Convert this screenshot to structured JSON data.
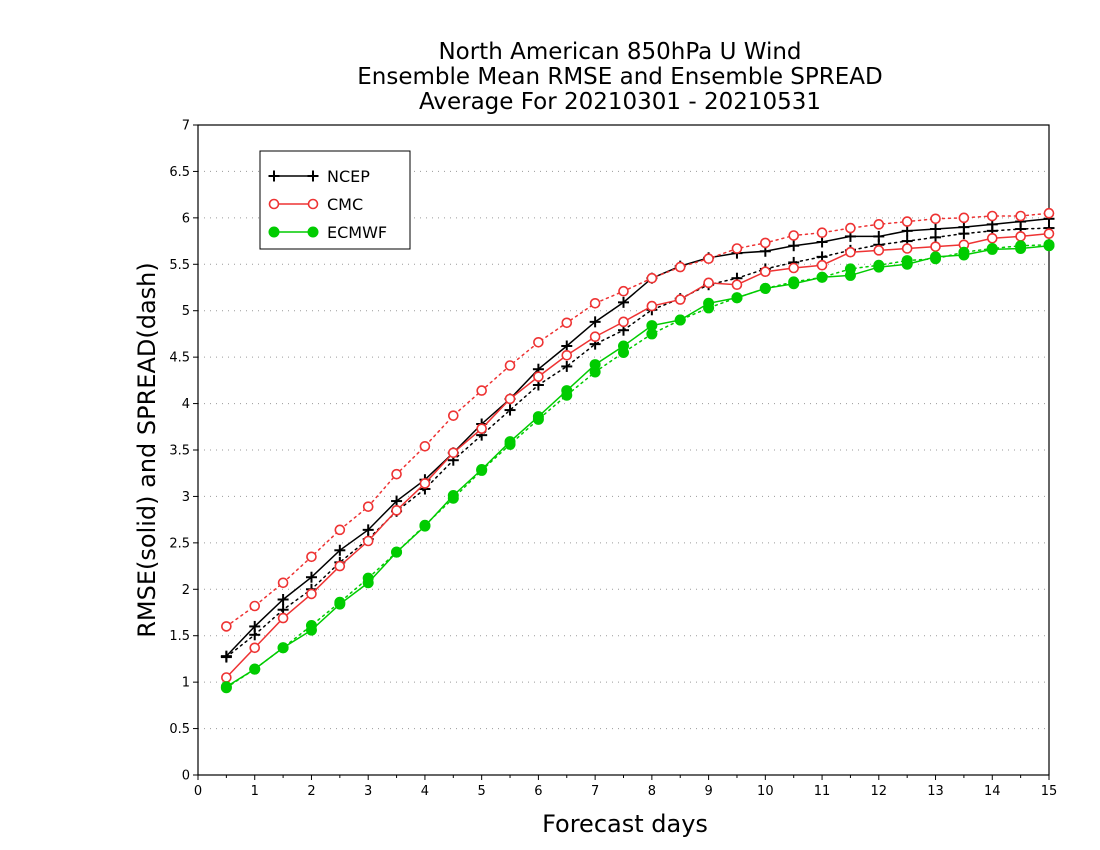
{
  "chart_data": {
    "type": "line",
    "title_lines": [
      "North American 850hPa U Wind",
      "Ensemble Mean RMSE and Ensemble SPREAD",
      "Average For 20210301 - 20210531"
    ],
    "xlabel": "Forecast days",
    "ylabel": "RMSE(solid) and SPREAD(dash)",
    "xlim": [
      0,
      15
    ],
    "ylim": [
      0,
      7
    ],
    "xticks": [
      0,
      1,
      2,
      3,
      4,
      5,
      6,
      7,
      8,
      9,
      10,
      11,
      12,
      13,
      14,
      15
    ],
    "yticks": [
      0,
      0.5,
      1,
      1.5,
      2,
      2.5,
      3,
      3.5,
      4,
      4.5,
      5,
      5.5,
      6,
      6.5,
      7
    ],
    "grid": "horizontal dotted",
    "legend_position": "top-left",
    "x": [
      0.5,
      1,
      1.5,
      2,
      2.5,
      3,
      3.5,
      4,
      4.5,
      5,
      5.5,
      6,
      6.5,
      7,
      7.5,
      8,
      8.5,
      9,
      9.5,
      10,
      10.5,
      11,
      11.5,
      12,
      12.5,
      13,
      13.5,
      14,
      14.5,
      15
    ],
    "series": [
      {
        "name": "NCEP",
        "color": "#000000",
        "marker": "plus",
        "rmse": [
          1.28,
          1.6,
          1.89,
          2.13,
          2.42,
          2.64,
          2.95,
          3.18,
          3.47,
          3.78,
          4.05,
          4.37,
          4.62,
          4.88,
          5.09,
          5.35,
          5.48,
          5.57,
          5.62,
          5.64,
          5.7,
          5.74,
          5.8,
          5.8,
          5.86,
          5.88,
          5.9,
          5.93,
          5.96,
          5.99
        ],
        "spread": [
          1.27,
          1.51,
          1.78,
          2.0,
          2.29,
          2.54,
          2.84,
          3.08,
          3.39,
          3.66,
          3.93,
          4.2,
          4.4,
          4.64,
          4.79,
          5.01,
          5.13,
          5.28,
          5.35,
          5.45,
          5.52,
          5.58,
          5.65,
          5.71,
          5.75,
          5.79,
          5.83,
          5.86,
          5.88,
          5.89
        ]
      },
      {
        "name": "CMC",
        "color": "#ee3333",
        "marker": "open-circle",
        "rmse": [
          1.05,
          1.37,
          1.69,
          1.95,
          2.25,
          2.52,
          2.85,
          3.14,
          3.47,
          3.73,
          4.05,
          4.29,
          4.52,
          4.72,
          4.88,
          5.05,
          5.12,
          5.3,
          5.28,
          5.42,
          5.46,
          5.49,
          5.63,
          5.65,
          5.67,
          5.69,
          5.71,
          5.78,
          5.8,
          5.83
        ],
        "spread": [
          1.6,
          1.82,
          2.07,
          2.35,
          2.64,
          2.89,
          3.24,
          3.54,
          3.87,
          4.14,
          4.41,
          4.66,
          4.87,
          5.08,
          5.21,
          5.35,
          5.47,
          5.56,
          5.67,
          5.73,
          5.81,
          5.84,
          5.89,
          5.93,
          5.96,
          5.99,
          6.0,
          6.02,
          6.02,
          6.05
        ]
      },
      {
        "name": "ECMWF",
        "color": "#00cc00",
        "marker": "filled-circle",
        "rmse": [
          0.95,
          1.14,
          1.37,
          1.56,
          1.84,
          2.07,
          2.4,
          2.68,
          3.01,
          3.29,
          3.59,
          3.86,
          4.14,
          4.42,
          4.62,
          4.84,
          4.9,
          5.08,
          5.14,
          5.24,
          5.29,
          5.36,
          5.38,
          5.47,
          5.5,
          5.58,
          5.6,
          5.66,
          5.67,
          5.7
        ],
        "spread": [
          0.94,
          1.14,
          1.37,
          1.61,
          1.86,
          2.12,
          2.4,
          2.69,
          2.98,
          3.28,
          3.56,
          3.83,
          4.09,
          4.34,
          4.55,
          4.75,
          4.9,
          5.03,
          5.14,
          5.24,
          5.31,
          5.36,
          5.45,
          5.49,
          5.54,
          5.56,
          5.63,
          5.67,
          5.7,
          5.71
        ]
      }
    ]
  }
}
